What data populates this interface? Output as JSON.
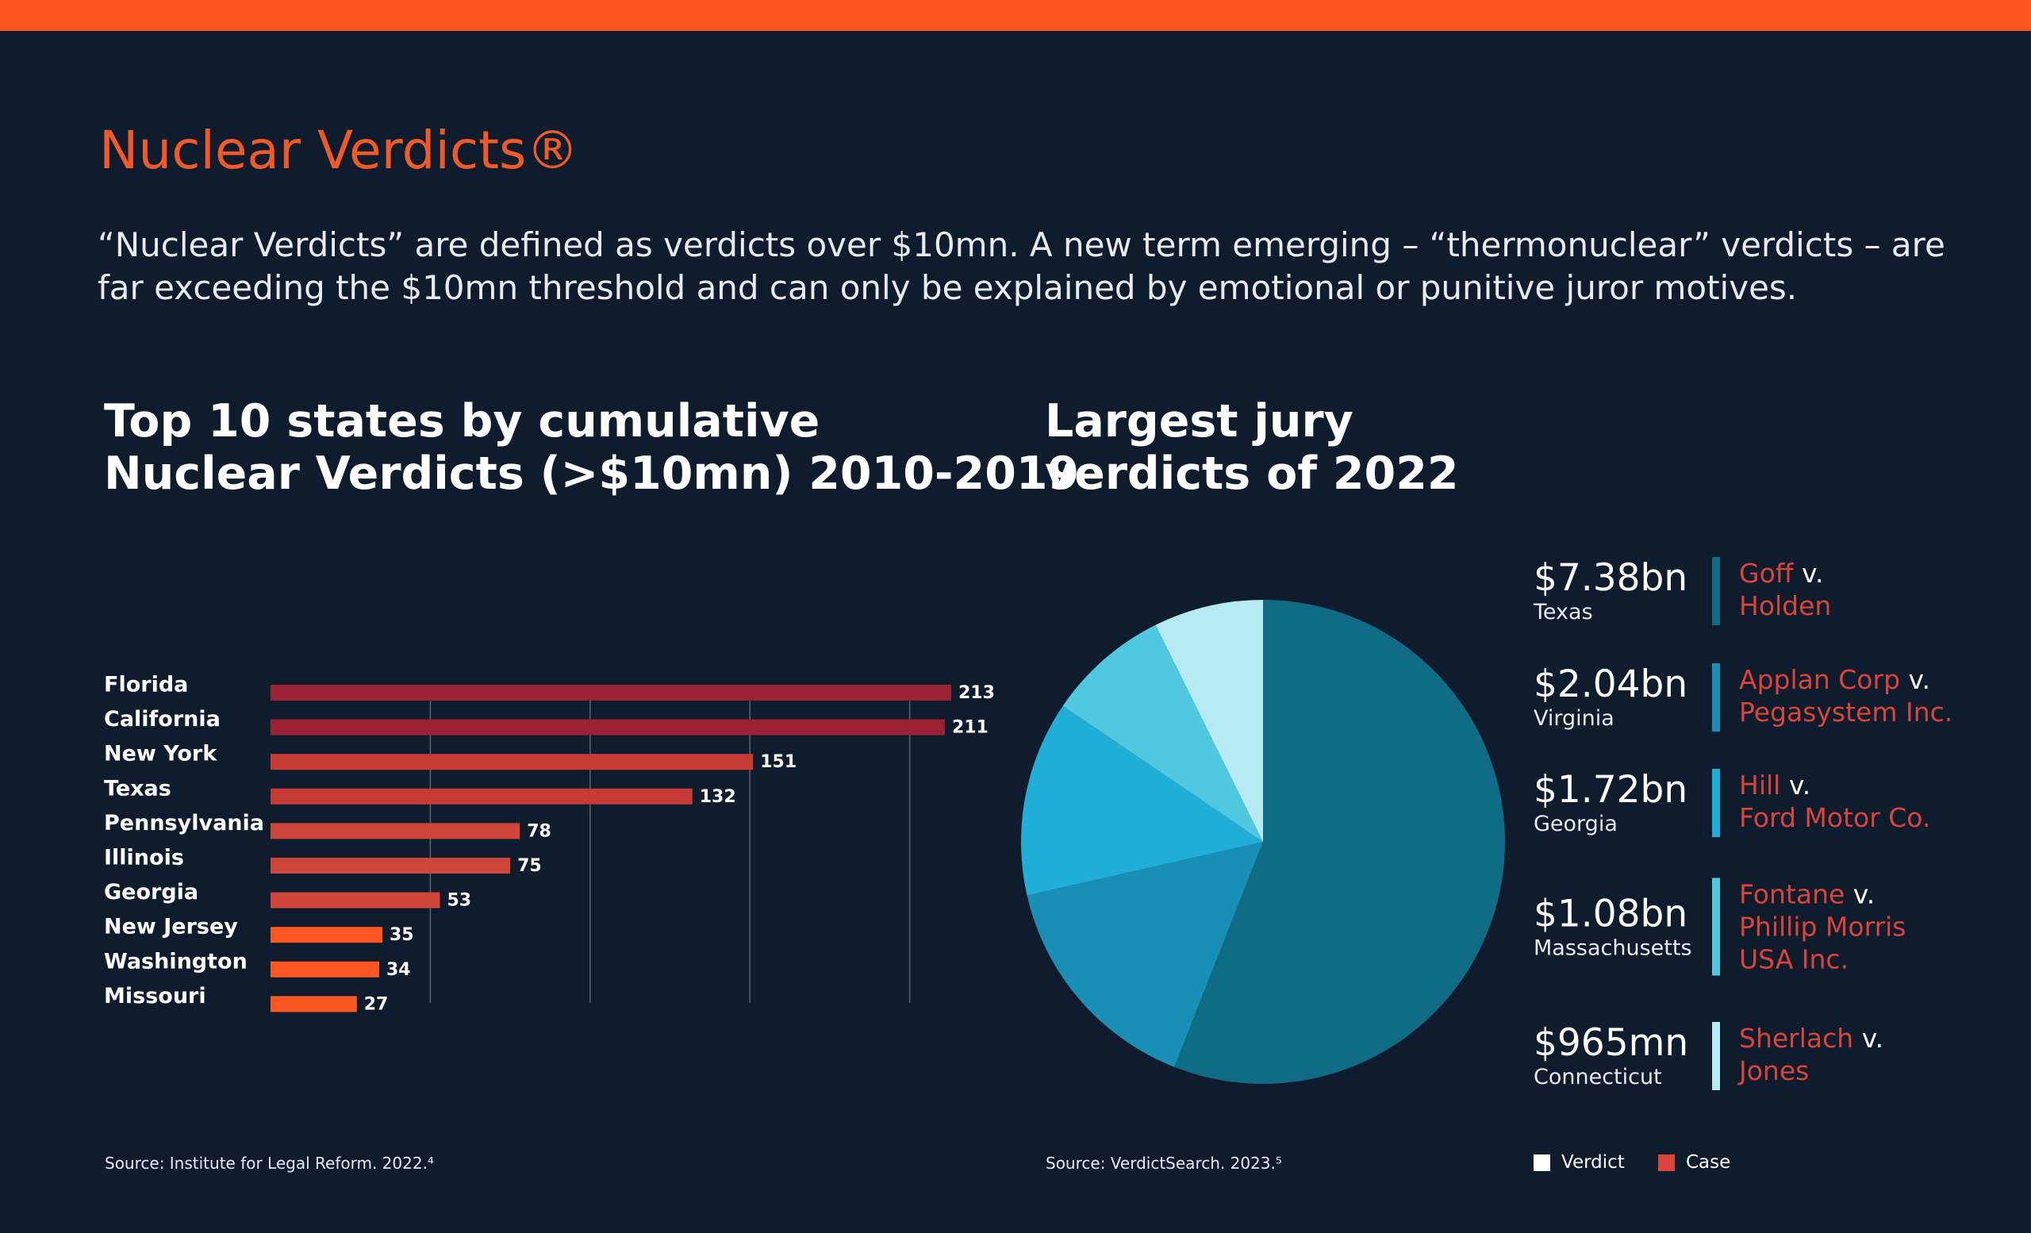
{
  "header": {
    "title": "Nuclear Verdicts®",
    "description": "“Nuclear Verdicts” are defined as verdicts over $10mn. A new term emerging – “thermonuclear” verdicts – are far exceeding the $10mn threshold and can only be explained by emotional or punitive juror motives."
  },
  "chart_data": [
    {
      "type": "bar",
      "orientation": "horizontal",
      "title": "Top 10 states by cumulative\nNuclear Verdicts (>$10mn) 2010-2019",
      "categories": [
        "Florida",
        "California",
        "New York",
        "Texas",
        "Pennsylvania",
        "Illinois",
        "Georgia",
        "New Jersey",
        "Washington",
        "Missouri"
      ],
      "values": [
        213,
        211,
        151,
        132,
        78,
        75,
        53,
        35,
        34,
        27
      ],
      "colors": [
        "#9b2335",
        "#9b2335",
        "#c63b35",
        "#c63b35",
        "#d0453a",
        "#d0453a",
        "#d0453a",
        "#ff5722",
        "#ff5722",
        "#ff5722"
      ],
      "xlim": [
        0,
        213
      ],
      "xticks": [
        50,
        100,
        150,
        200
      ],
      "tick_labels": false,
      "grid": true,
      "source": "Source: Institute for Legal Reform. 2022.⁴"
    },
    {
      "type": "pie",
      "title": "Largest jury\nverdicts of 2022",
      "values": [
        7.38,
        2.04,
        1.72,
        1.08,
        0.965
      ],
      "value_labels": [
        "$7.38bn",
        "$2.04bn",
        "$1.72bn",
        "$1.08bn",
        "$965mn"
      ],
      "states": [
        "Texas",
        "Virginia",
        "Georgia",
        "Massachusetts",
        "Connecticut"
      ],
      "versus": "v.",
      "cases": [
        {
          "plaintiff": "Goff",
          "defendant": "Holden"
        },
        {
          "plaintiff": "Applan Corp",
          "defendant": "Pegasystem Inc."
        },
        {
          "plaintiff": "Hill",
          "defendant": "Ford Motor Co."
        },
        {
          "plaintiff": "Fontane",
          "defendant": "Phillip Morris USA Inc."
        },
        {
          "plaintiff": "Sherlach",
          "defendant": "Jones"
        }
      ],
      "colors": [
        "#106b85",
        "#1a8fb5",
        "#1eaed8",
        "#4fc8e0",
        "#b5eaf2"
      ],
      "legend": [
        {
          "label": "Verdict",
          "color": "#ffffff"
        },
        {
          "label": "Case",
          "color": "#d9453b"
        }
      ],
      "source": "Source: VerdictSearch. 2023.⁵"
    }
  ]
}
